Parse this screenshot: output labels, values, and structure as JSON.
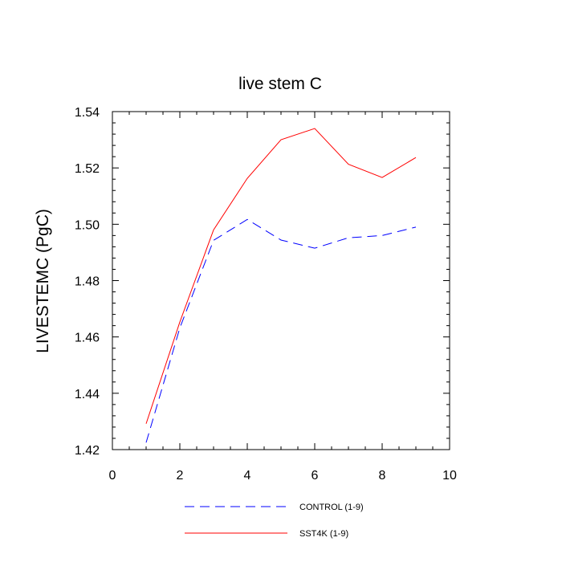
{
  "chart_data": {
    "type": "line",
    "title": "live stem C",
    "xlabel": "",
    "ylabel": "LIVESTEMC  (PgC)",
    "xlim": [
      0,
      10
    ],
    "ylim": [
      1.42,
      1.54
    ],
    "x_ticks": [
      "0",
      "2",
      "4",
      "6",
      "8",
      "10"
    ],
    "y_ticks": [
      "1.42",
      "1.44",
      "1.46",
      "1.48",
      "1.50",
      "1.52",
      "1.54"
    ],
    "grid": false,
    "legend_position": "bottom",
    "x": [
      1,
      2,
      3,
      4,
      5,
      6,
      7,
      8,
      9
    ],
    "series": [
      {
        "name": "CONTROL (1-9)",
        "color": "#0000ff",
        "dash": "dashed",
        "values": [
          1.4225,
          1.4632,
          1.4943,
          1.5017,
          1.4944,
          1.4915,
          1.4952,
          1.496,
          1.499
        ]
      },
      {
        "name": "SST4K (1-9)",
        "color": "#ff0000",
        "dash": "solid",
        "values": [
          1.4292,
          1.4653,
          1.498,
          1.5163,
          1.53,
          1.534,
          1.5213,
          1.5166,
          1.5237
        ]
      }
    ]
  }
}
